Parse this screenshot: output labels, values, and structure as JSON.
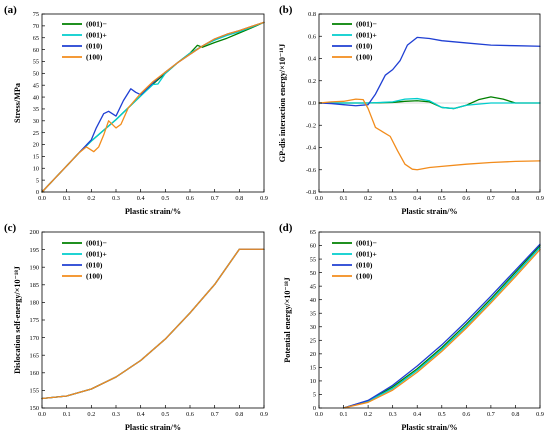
{
  "colors": {
    "(001)-": "#008000",
    "(001)+": "#00cdcd",
    "(010)": "#1f3fd3",
    "(100)": "#f28c1c",
    "axis": "#000000",
    "zero_line": "#cfcfcf"
  },
  "chart_data": [
    {
      "type": "line",
      "panel_label": "(a)",
      "xlabel": "Plastic strain/%",
      "ylabel": "Stress/MPa",
      "xlim": [
        0,
        0.9
      ],
      "ylim": [
        0,
        75
      ],
      "xticks": [
        0.0,
        0.1,
        0.2,
        0.3,
        0.4,
        0.5,
        0.6,
        0.7,
        0.8,
        0.9
      ],
      "xtick_labels": [
        "0.0",
        "0.1",
        "0.2",
        "0.3",
        "0.4",
        "0.5",
        "0.6",
        "0.7",
        "0.8",
        "0.9"
      ],
      "yticks": [
        0,
        5,
        10,
        15,
        20,
        25,
        30,
        35,
        40,
        45,
        50,
        55,
        60,
        65,
        70,
        75
      ],
      "ytick_labels": [
        "0",
        "5",
        "10",
        "15",
        "20",
        "25",
        "30",
        "35",
        "40",
        "45",
        "50",
        "55",
        "60",
        "65",
        "70",
        "75"
      ],
      "legend_position": "top-left",
      "legend": [
        "(001)−",
        "(001)+",
        "(010)",
        "(100)"
      ],
      "series": [
        {
          "name": "(001)−",
          "color": "#008000",
          "x": [
            0,
            0.05,
            0.1,
            0.15,
            0.2,
            0.25,
            0.3,
            0.35,
            0.4,
            0.45,
            0.5,
            0.55,
            0.6,
            0.63,
            0.65,
            0.7,
            0.75,
            0.8,
            0.85,
            0.9
          ],
          "y": [
            0,
            5.5,
            11,
            16.5,
            21.5,
            26,
            30.5,
            35.5,
            40.5,
            45.5,
            50,
            54.5,
            58.5,
            61.8,
            61,
            63,
            64.8,
            67,
            69.2,
            71.5
          ]
        },
        {
          "name": "(001)+",
          "color": "#00cdcd",
          "x": [
            0,
            0.05,
            0.1,
            0.15,
            0.2,
            0.25,
            0.3,
            0.35,
            0.4,
            0.45,
            0.47,
            0.5,
            0.55,
            0.6,
            0.65,
            0.7,
            0.75,
            0.8,
            0.85,
            0.9
          ],
          "y": [
            0,
            5.5,
            11,
            16.5,
            21.5,
            26,
            30.5,
            35.5,
            40.5,
            45.3,
            45.5,
            50,
            54.5,
            58.5,
            61.5,
            64,
            66,
            67.5,
            69.5,
            71.5
          ]
        },
        {
          "name": "(010)",
          "color": "#1f3fd3",
          "x": [
            0,
            0.05,
            0.1,
            0.15,
            0.2,
            0.22,
            0.25,
            0.27,
            0.3,
            0.33,
            0.36,
            0.38,
            0.4,
            0.45,
            0.5,
            0.55,
            0.6,
            0.65,
            0.7,
            0.75,
            0.8,
            0.85,
            0.9
          ],
          "y": [
            0,
            5.5,
            11,
            16.5,
            22,
            27,
            33,
            34,
            32,
            38.5,
            43.5,
            42,
            41,
            46,
            50.5,
            54.5,
            58,
            61.5,
            64.5,
            66.5,
            68,
            69.8,
            71.5
          ]
        },
        {
          "name": "(100)",
          "color": "#f28c1c",
          "x": [
            0,
            0.05,
            0.1,
            0.15,
            0.18,
            0.21,
            0.23,
            0.25,
            0.27,
            0.3,
            0.32,
            0.35,
            0.4,
            0.45,
            0.5,
            0.55,
            0.6,
            0.65,
            0.7,
            0.75,
            0.8,
            0.85,
            0.9
          ],
          "y": [
            0,
            5.5,
            11,
            16.5,
            19,
            17,
            19,
            24,
            30,
            27,
            28.5,
            35.5,
            41.5,
            46.5,
            50.5,
            54.5,
            58,
            61.5,
            64.5,
            66.5,
            68,
            69.8,
            71.5
          ]
        }
      ]
    },
    {
      "type": "line",
      "panel_label": "(b)",
      "xlabel": "Plastic strain/%",
      "ylabel": "GP-dis interaction energy/×10⁻¹⁸J",
      "xlim": [
        0,
        0.9
      ],
      "ylim": [
        -0.8,
        0.8
      ],
      "xticks": [
        0.0,
        0.1,
        0.2,
        0.3,
        0.4,
        0.5,
        0.6,
        0.7,
        0.8,
        0.9
      ],
      "xtick_labels": [
        "0.0",
        "0.1",
        "0.2",
        "0.3",
        "0.4",
        "0.5",
        "0.6",
        "0.7",
        "0.8",
        "0.9"
      ],
      "yticks": [
        -0.8,
        -0.6,
        -0.4,
        -0.2,
        0.0,
        0.2,
        0.4,
        0.6,
        0.8
      ],
      "ytick_labels": [
        "-0.8",
        "-0.6",
        "-0.4",
        "-0.2",
        "0.0",
        "0.2",
        "0.4",
        "0.6",
        "0.8"
      ],
      "legend_position": "top-left",
      "legend": [
        "(001)−",
        "(001)+",
        "(010)",
        "(100)"
      ],
      "series": [
        {
          "name": "(001)−",
          "color": "#008000",
          "x": [
            0,
            0.1,
            0.2,
            0.3,
            0.35,
            0.4,
            0.45,
            0.5,
            0.55,
            0.6,
            0.65,
            0.7,
            0.75,
            0.8,
            0.9
          ],
          "y": [
            0,
            0,
            0,
            0.005,
            0.015,
            0.02,
            0.01,
            -0.04,
            -0.05,
            -0.02,
            0.03,
            0.055,
            0.035,
            0,
            0
          ]
        },
        {
          "name": "(001)+",
          "color": "#00cdcd",
          "x": [
            0,
            0.1,
            0.2,
            0.3,
            0.35,
            0.4,
            0.45,
            0.5,
            0.55,
            0.6,
            0.7,
            0.8,
            0.9
          ],
          "y": [
            0,
            0,
            0,
            0.01,
            0.035,
            0.04,
            0.02,
            -0.04,
            -0.05,
            -0.02,
            0,
            0,
            0
          ]
        },
        {
          "name": "(010)",
          "color": "#1f3fd3",
          "x": [
            0,
            0.05,
            0.1,
            0.15,
            0.2,
            0.23,
            0.27,
            0.3,
            0.33,
            0.36,
            0.4,
            0.45,
            0.5,
            0.6,
            0.7,
            0.8,
            0.9
          ],
          "y": [
            0,
            -0.005,
            -0.015,
            -0.025,
            -0.015,
            0.08,
            0.25,
            0.3,
            0.38,
            0.52,
            0.59,
            0.58,
            0.56,
            0.54,
            0.52,
            0.515,
            0.51
          ]
        },
        {
          "name": "(100)",
          "color": "#f28c1c",
          "x": [
            0,
            0.05,
            0.1,
            0.15,
            0.18,
            0.2,
            0.23,
            0.26,
            0.29,
            0.32,
            0.35,
            0.38,
            0.4,
            0.45,
            0.5,
            0.6,
            0.7,
            0.8,
            0.9
          ],
          "y": [
            0,
            0.01,
            0.015,
            0.035,
            0.03,
            -0.05,
            -0.22,
            -0.26,
            -0.3,
            -0.43,
            -0.55,
            -0.595,
            -0.6,
            -0.58,
            -0.57,
            -0.55,
            -0.535,
            -0.525,
            -0.52
          ]
        }
      ]
    },
    {
      "type": "line",
      "panel_label": "(c)",
      "xlabel": "Plastic strain/%",
      "ylabel": "Dislocation self-energy/×10⁻¹⁸J",
      "xlim": [
        0,
        0.9
      ],
      "ylim": [
        150,
        200
      ],
      "xticks": [
        0.0,
        0.1,
        0.2,
        0.3,
        0.4,
        0.5,
        0.6,
        0.7,
        0.8,
        0.9
      ],
      "xtick_labels": [
        "0.0",
        "0.1",
        "0.2",
        "0.3",
        "0.4",
        "0.5",
        "0.6",
        "0.7",
        "0.8",
        "0.9"
      ],
      "yticks": [
        150,
        155,
        160,
        165,
        170,
        175,
        180,
        185,
        190,
        195,
        200
      ],
      "ytick_labels": [
        "150",
        "155",
        "160",
        "165",
        "170",
        "175",
        "180",
        "185",
        "190",
        "195",
        "200"
      ],
      "legend_position": "top-left",
      "legend": [
        "(001)−",
        "(001)+",
        "(010)",
        "(100)"
      ],
      "series": [
        {
          "name": "(001)−",
          "color": "#008000",
          "x": [
            0,
            0.1,
            0.2,
            0.3,
            0.4,
            0.5,
            0.6,
            0.7,
            0.8,
            0.9
          ],
          "y": [
            152.7,
            153.4,
            155.4,
            158.8,
            163.5,
            169.6,
            177.0,
            185.1,
            195.1,
            195.1
          ]
        },
        {
          "name": "(001)+",
          "color": "#00cdcd",
          "x": [
            0,
            0.1,
            0.2,
            0.3,
            0.4,
            0.5,
            0.6,
            0.7,
            0.8,
            0.9
          ],
          "y": [
            152.7,
            153.4,
            155.4,
            158.8,
            163.5,
            169.6,
            177.0,
            185.1,
            195.1,
            195.1
          ]
        },
        {
          "name": "(010)",
          "color": "#1f3fd3",
          "x": [
            0,
            0.1,
            0.2,
            0.3,
            0.4,
            0.5,
            0.6,
            0.7,
            0.8,
            0.9
          ],
          "y": [
            152.7,
            153.4,
            155.4,
            158.8,
            163.5,
            169.6,
            177.0,
            185.1,
            195.1,
            195.1
          ]
        },
        {
          "name": "(100)",
          "color": "#f28c1c",
          "x": [
            0,
            0.1,
            0.2,
            0.3,
            0.4,
            0.5,
            0.6,
            0.7,
            0.8,
            0.9
          ],
          "y": [
            152.7,
            153.4,
            155.4,
            158.8,
            163.5,
            169.6,
            177.0,
            185.1,
            195.1,
            195.1
          ]
        }
      ]
    },
    {
      "type": "line",
      "panel_label": "(d)",
      "xlabel": "Plastic strain/%",
      "ylabel": "Potential energy/×10⁻¹⁸J",
      "xlim": [
        0,
        0.9
      ],
      "ylim": [
        0,
        65
      ],
      "xticks": [
        0.0,
        0.1,
        0.2,
        0.3,
        0.4,
        0.5,
        0.6,
        0.7,
        0.8,
        0.9
      ],
      "xtick_labels": [
        "0.0",
        "0.1",
        "0.2",
        "0.3",
        "0.4",
        "0.5",
        "0.6",
        "0.7",
        "0.8",
        "0.9"
      ],
      "yticks": [
        0,
        5,
        10,
        15,
        20,
        25,
        30,
        35,
        40,
        45,
        50,
        55,
        60,
        65
      ],
      "ytick_labels": [
        "0",
        "5",
        "10",
        "15",
        "20",
        "25",
        "30",
        "35",
        "40",
        "45",
        "50",
        "55",
        "60",
        "65"
      ],
      "legend_position": "top-left",
      "legend": [
        "(001)−",
        "(001)+",
        "(010)",
        "(100)"
      ],
      "series": [
        {
          "name": "(001)−",
          "color": "#008000",
          "x": [
            0.1,
            0.2,
            0.3,
            0.4,
            0.5,
            0.6,
            0.7,
            0.8,
            0.9
          ],
          "y": [
            0,
            2.7,
            7.8,
            14.5,
            22.3,
            31.0,
            40.3,
            50.1,
            60.0
          ]
        },
        {
          "name": "(001)+",
          "color": "#00cdcd",
          "x": [
            0.1,
            0.2,
            0.3,
            0.4,
            0.5,
            0.6,
            0.7,
            0.8,
            0.9
          ],
          "y": [
            0,
            2.5,
            7.2,
            13.9,
            21.6,
            30.2,
            39.5,
            49.3,
            59.3
          ]
        },
        {
          "name": "(010)",
          "color": "#1f3fd3",
          "x": [
            0.1,
            0.2,
            0.3,
            0.4,
            0.5,
            0.6,
            0.7,
            0.8,
            0.9
          ],
          "y": [
            0,
            2.8,
            8.4,
            15.5,
            23.3,
            32.0,
            41.3,
            50.9,
            60.5
          ]
        },
        {
          "name": "(100)",
          "color": "#f28c1c",
          "x": [
            0.1,
            0.2,
            0.3,
            0.4,
            0.5,
            0.6,
            0.7,
            0.8,
            0.9
          ],
          "y": [
            0,
            2.1,
            6.6,
            13.2,
            20.9,
            29.5,
            38.8,
            48.5,
            58.5
          ]
        }
      ]
    }
  ]
}
